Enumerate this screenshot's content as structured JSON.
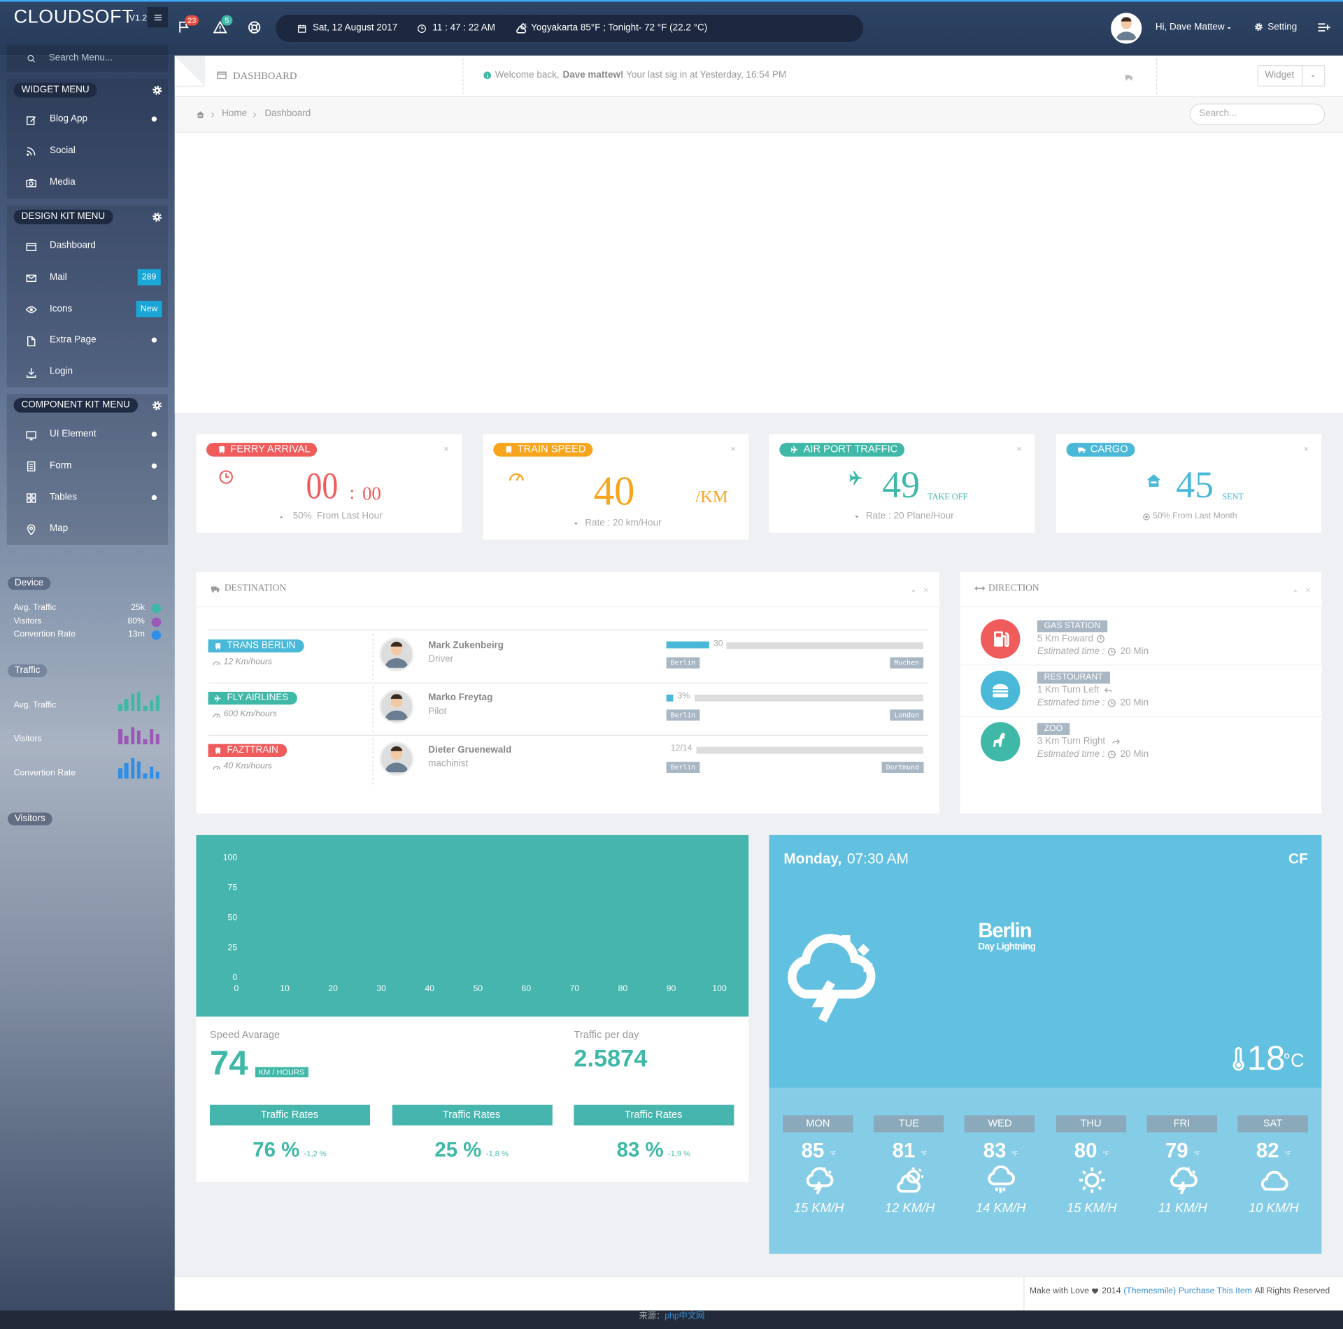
{
  "header": {
    "brand": "CLOUDSOFT",
    "version": "V1.2",
    "notifications": "23",
    "alerts": "5",
    "date": "Sat, 12 August 2017",
    "time": "11 : 47 : 22 AM",
    "weather": "Yogyakarta  85°F ; Tonight- 72 °F (22.2 °C)",
    "user": "Hi, Dave Mattew",
    "setting": "Setting"
  },
  "sidebar": {
    "search": "Search Menu...",
    "groups": [
      {
        "title": "WIDGET MENU",
        "items": [
          {
            "label": "Blog App"
          },
          {
            "label": "Social"
          },
          {
            "label": "Media"
          }
        ]
      },
      {
        "title": "DESIGN KIT MENU",
        "items": [
          {
            "label": "Dashboard"
          },
          {
            "label": "Mail",
            "badge": "289"
          },
          {
            "label": "Icons",
            "badge": "New"
          },
          {
            "label": "Extra Page"
          },
          {
            "label": "Login"
          }
        ]
      },
      {
        "title": "COMPONENT KIT MENU",
        "items": [
          {
            "label": "UI Element"
          },
          {
            "label": "Form"
          },
          {
            "label": "Tables"
          },
          {
            "label": "Map"
          }
        ]
      }
    ],
    "device": {
      "title": "Device",
      "rows": [
        {
          "label": "Avg. Traffic",
          "value": "25k"
        },
        {
          "label": "Visitors",
          "value": "80%"
        },
        {
          "label": "Convertion Rate",
          "value": "13m"
        }
      ]
    },
    "traffic": {
      "title": "Traffic",
      "rows": [
        {
          "label": "Avg. Traffic"
        },
        {
          "label": "Visitors"
        },
        {
          "label": "Convertion Rate"
        }
      ]
    },
    "visitors": {
      "title": "Visitors"
    }
  },
  "toolbar": {
    "title": "DASHBOARD",
    "welcome": "Welcome back,",
    "user": "Dave mattew!",
    "last_login": "Your last sig in at Yesterday, 16:54 PM",
    "widget": "Widget"
  },
  "breadcrumb": {
    "items": [
      "Home",
      "Dashboard"
    ],
    "search": "Search..."
  },
  "stats": [
    {
      "title": "FERRY ARRIVAL",
      "value": "00",
      "separator": ":",
      "sub": "00",
      "change": "50%",
      "note": "From Last Hour"
    },
    {
      "title": "TRAIN SPEED",
      "value": "40",
      "unit": "/KM",
      "note": "Rate : 20 km/Hour"
    },
    {
      "title": "AIR PORT TRAFFIC",
      "value": "49",
      "unit": "TAKE OFF",
      "note": "Rate : 20 Plane/Hour"
    },
    {
      "title": "CARGO",
      "value": "45",
      "unit": "SENT",
      "note": "50% From Last Month"
    }
  ],
  "destination": {
    "title": "DESTINATION",
    "rows": [
      {
        "route": "TRANS BERLIN",
        "speed": "12 Km/hours",
        "name": "Mark Zukenbeirg",
        "role": "Driver",
        "progress": "30",
        "from": "Berlin",
        "to": "Muchen"
      },
      {
        "route": "FLY AIRLINES",
        "speed": "600 Km/hours",
        "name": "Marko Freytag",
        "role": "Pilot",
        "progress": "3%",
        "from": "Berlin",
        "to": "London"
      },
      {
        "route": "FAZTTRAIN",
        "speed": "40 Km/hours",
        "name": "Dieter Gruenewald",
        "role": "machinist",
        "progress": "12/14",
        "from": "Berlin",
        "to": "Dortmund"
      }
    ]
  },
  "direction": {
    "title": "DIRECTION",
    "items": [
      {
        "tag": "GAS STATION",
        "route": "5 Km Foward",
        "estimate": "Estimated time :",
        "time": "20 Min"
      },
      {
        "tag": "RESTOURANT",
        "route": "1 Km Turn Left",
        "estimate": "Estimated time :",
        "time": "20 Min"
      },
      {
        "tag": "ZOO",
        "route": "3 Km Turn Right",
        "estimate": "Estimated time :",
        "time": "20 Min"
      }
    ]
  },
  "speed_chart": {
    "type": "line",
    "xlim": [
      0,
      100
    ],
    "ylim": [
      0,
      100
    ],
    "xticks": [
      0,
      10,
      20,
      30,
      40,
      50,
      60,
      70,
      80,
      90,
      100
    ],
    "yticks": [
      0,
      25,
      50,
      75,
      100
    ]
  },
  "speed_summary": {
    "avg_label": "Speed Avarage",
    "avg_value": "74",
    "avg_unit": "KM / HOURS",
    "day_label": "Traffic per day",
    "day_value": "2.5874",
    "rates": [
      {
        "label": "Traffic Rates",
        "value": "76 %",
        "change": "-1,2 %"
      },
      {
        "label": "Traffic Rates",
        "value": "25 %",
        "change": "-1,8 %"
      },
      {
        "label": "Traffic Rates",
        "value": "83 %",
        "change": "-1,9 %"
      }
    ]
  },
  "weather": {
    "day": "Monday,",
    "time": "07:30 AM",
    "units": "CF",
    "city": "Berlin",
    "condition": "Day Lightning",
    "temp": "18",
    "temp_unit": "°C",
    "forecast": [
      {
        "day": "MON",
        "temp": "85",
        "unit": "°F",
        "wind": "15 KM/H"
      },
      {
        "day": "TUE",
        "temp": "81",
        "unit": "°F",
        "wind": "12 KM/H"
      },
      {
        "day": "WED",
        "temp": "83",
        "unit": "°F",
        "wind": "14 KM/H"
      },
      {
        "day": "THU",
        "temp": "80",
        "unit": "°F",
        "wind": "15 KM/H"
      },
      {
        "day": "FRI",
        "temp": "79",
        "unit": "°F",
        "wind": "11 KM/H"
      },
      {
        "day": "SAT",
        "temp": "82",
        "unit": "°F",
        "wind": "10 KM/H"
      }
    ]
  },
  "footer": {
    "text": "Make with Love",
    "year": "2014",
    "author": "(Themesmile)",
    "purchase": "Purchase This Item",
    "rights": "All Rights Reserved"
  },
  "source": {
    "label": "来源：",
    "site": "php中文网"
  }
}
